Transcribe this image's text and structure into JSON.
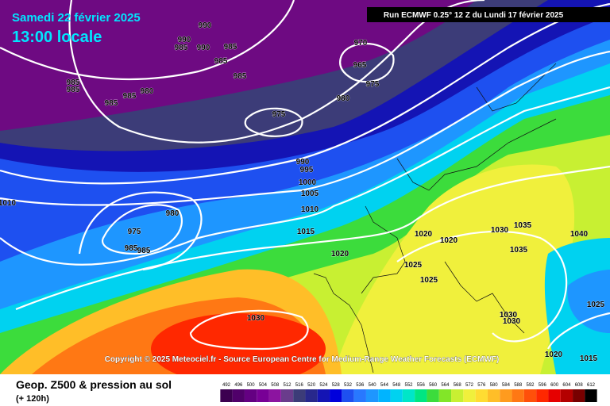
{
  "header": {
    "date": "Samedi 22 février 2025",
    "time": "13:00 locale",
    "run": "Run ECMWF 0.25° 12 Z du Lundi 17 février 2025"
  },
  "copyright": "Copyright © 2025 Meteociel.fr - Source European Centre for Medium-Range Weather Forecasts (ECMWF)",
  "footer": {
    "title": "Geop. Z500 & pression au sol",
    "lead": "(+ 120h)"
  },
  "legend": {
    "levels": [
      492,
      496,
      500,
      504,
      508,
      512,
      516,
      520,
      524,
      528,
      532,
      536,
      540,
      544,
      548,
      552,
      556,
      560,
      564,
      568,
      572,
      576,
      580,
      584,
      588,
      592,
      596,
      600,
      604,
      608,
      612
    ],
    "colors": [
      "#3c0050",
      "#50006a",
      "#640082",
      "#780096",
      "#8c14a0",
      "#6a3c8c",
      "#3c3c78",
      "#28288c",
      "#1414b4",
      "#0000dc",
      "#1e50f0",
      "#2878ff",
      "#1e96ff",
      "#00b4ff",
      "#00d2f0",
      "#00e6c8",
      "#00e682",
      "#3cdc3c",
      "#82e628",
      "#c8f032",
      "#f0f03c",
      "#ffdc32",
      "#ffbe28",
      "#ff9b1e",
      "#ff7814",
      "#ff500a",
      "#ff2800",
      "#e60000",
      "#b40000",
      "#780000",
      "#000000"
    ]
  },
  "pressure_labels": [
    990,
    990,
    985,
    990,
    985,
    985,
    985,
    970,
    965,
    975,
    980,
    975,
    985,
    985,
    985,
    980,
    985,
    990,
    995,
    1000,
    1005,
    1010,
    1010,
    980,
    975,
    985,
    985,
    1015,
    1020,
    1020,
    1020,
    1030,
    1035,
    1040,
    1035,
    1025,
    1025,
    1030,
    1030,
    1030,
    1025,
    1020,
    1015
  ]
}
